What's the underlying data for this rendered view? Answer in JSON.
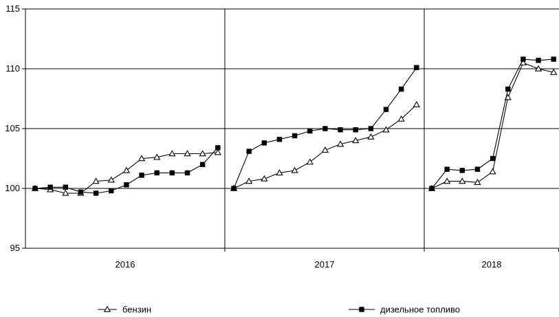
{
  "chart_data": {
    "type": "line",
    "title": "",
    "xlabel": "",
    "ylabel": "",
    "ylim": [
      95,
      115
    ],
    "yticks": [
      95,
      100,
      105,
      110,
      115
    ],
    "grid": "horizontal at each y tick; vertical separators between years",
    "legend_position": "bottom",
    "periods": [
      {
        "label": "2016",
        "months": 12
      },
      {
        "label": "2017",
        "months": 12
      },
      {
        "label": "2018",
        "months": 9
      }
    ],
    "series": [
      {
        "name": "бензин",
        "marker": "open-triangle",
        "color": "#000000",
        "segments": [
          [
            100.0,
            99.9,
            99.6,
            99.6,
            100.6,
            100.7,
            101.5,
            102.5,
            102.6,
            102.9,
            102.9,
            102.9,
            103.0
          ],
          [
            100.0,
            100.6,
            100.8,
            101.3,
            101.5,
            102.2,
            103.2,
            103.7,
            104.0,
            104.3,
            104.9,
            105.8,
            107.0
          ],
          [
            100.0,
            100.6,
            100.6,
            100.5,
            101.4,
            107.6,
            110.5,
            110.0,
            109.7
          ]
        ]
      },
      {
        "name": "дизельное топливо",
        "marker": "filled-square",
        "color": "#000000",
        "segments": [
          [
            100.0,
            100.1,
            100.1,
            99.7,
            99.6,
            99.8,
            100.3,
            101.1,
            101.3,
            101.3,
            101.3,
            102.0,
            103.4
          ],
          [
            100.0,
            103.1,
            103.8,
            104.1,
            104.4,
            104.8,
            105.0,
            104.9,
            104.9,
            105.0,
            106.6,
            108.3,
            110.1
          ],
          [
            100.0,
            101.6,
            101.5,
            101.6,
            102.5,
            108.3,
            110.8,
            110.7,
            110.8
          ]
        ]
      }
    ]
  }
}
